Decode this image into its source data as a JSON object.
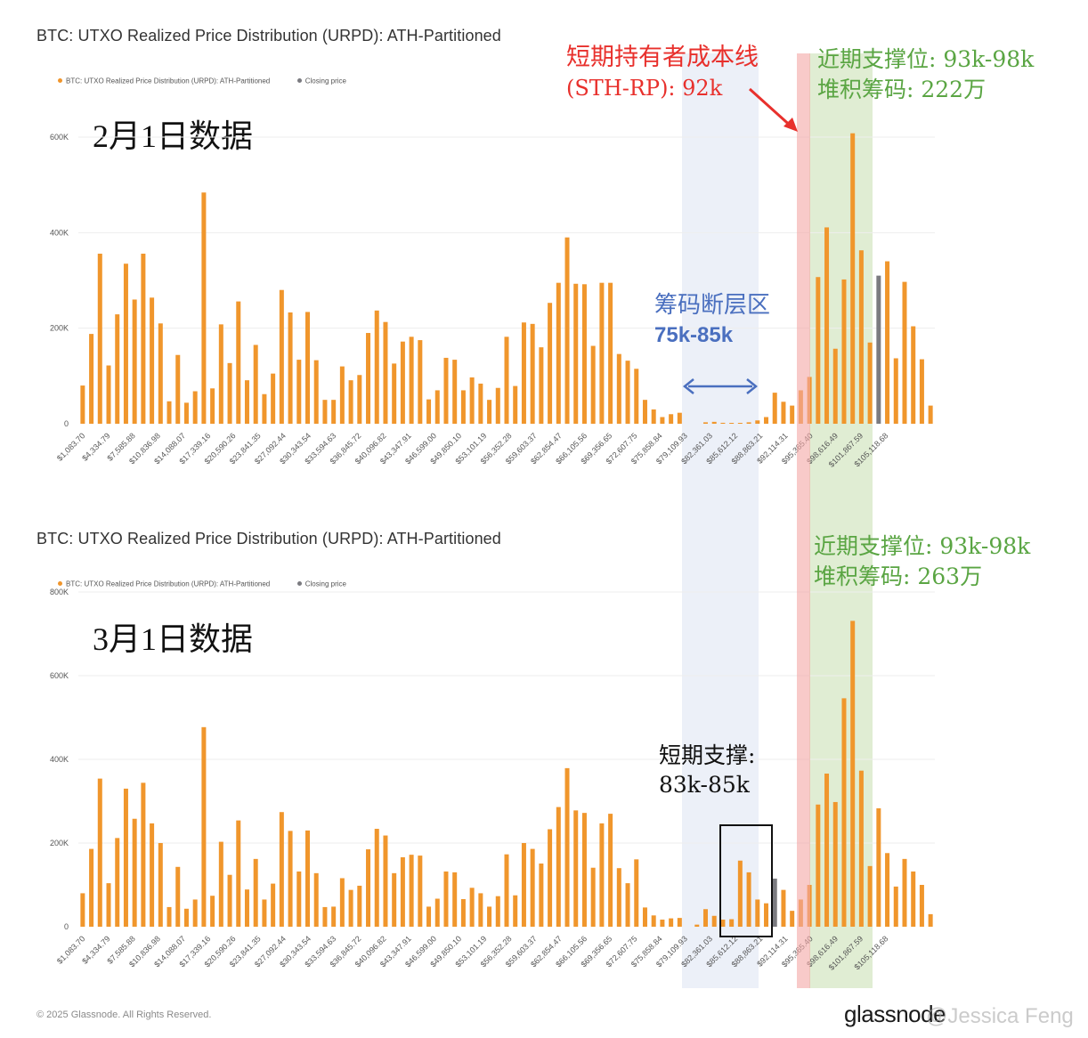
{
  "watermark": "@Jessica Feng",
  "footer": {
    "copyright": "© 2025 Glassnode. All Rights Reserved.",
    "brand": "glassnode"
  },
  "colors": {
    "bar": "#f0962c",
    "closing": "#7b7b80",
    "grid": "#eeeeee",
    "gap_band": "#e5ebf6",
    "sth_band": "#f4a7a5",
    "support_band": "#cfe4bb",
    "red_text": "#e8302c",
    "blue_text": "#4a6fbf",
    "green_text": "#5aa543",
    "box_border": "#111111"
  },
  "annotations": {
    "sth_line1": "短期持有者成本线",
    "sth_line2": "(STH-RP): 92k",
    "gap_line1": "筹码断层区",
    "gap_line2": "75k-85k",
    "support1_line1": "近期支撑位: 93k-98k",
    "support1_line2": "堆积筹码: 222万",
    "support2_line1": "近期支撑位: 93k-98k",
    "support2_line2": "堆积筹码: 263万",
    "short_line1": "短期支撑:",
    "short_line2": "83k-85k"
  },
  "chart_data": [
    {
      "type": "bar",
      "title": "BTC: UTXO Realized Price Distribution (URPD): ATH-Partitioned",
      "date_label": "2月1日数据",
      "legend": [
        "BTC: UTXO Realized Price Distribution (URPD): ATH-Partitioned",
        "Closing price"
      ],
      "ylim": [
        0,
        600000
      ],
      "yticks": [
        "0",
        "200K",
        "400K",
        "600K"
      ],
      "xtick_labels": [
        "$1,083.70",
        "$4,334.79",
        "$7,585.88",
        "$10,836.98",
        "$14,088.07",
        "$17,339.16",
        "$20,590.26",
        "$23,841.35",
        "$27,092.44",
        "$30,343.54",
        "$33,594.63",
        "$36,845.72",
        "$40,096.82",
        "$43,347.91",
        "$46,599.00",
        "$49,850.10",
        "$53,101.19",
        "$56,352.28",
        "$59,603.37",
        "$62,854.47",
        "$66,105.56",
        "$69,356.65",
        "$72,607.75",
        "$75,858.84",
        "$79,109.93",
        "$82,361.03",
        "$85,612.12",
        "$88,863.21",
        "$92,114.31",
        "$95,365.40",
        "$98,616.49",
        "$101,867.59",
        "$105,118.68"
      ],
      "values": [
        80000,
        188000,
        356000,
        122000,
        229000,
        335000,
        260000,
        356000,
        264000,
        210000,
        47000,
        144000,
        44000,
        68000,
        484000,
        74000,
        208000,
        127000,
        256000,
        91000,
        165000,
        62000,
        105000,
        280000,
        233000,
        134000,
        234000,
        133000,
        50000,
        50000,
        120000,
        91000,
        102000,
        190000,
        237000,
        213000,
        126000,
        172000,
        182000,
        175000,
        51000,
        70000,
        138000,
        134000,
        70000,
        97000,
        84000,
        50000,
        75000,
        182000,
        79000,
        212000,
        209000,
        160000,
        253000,
        295000,
        390000,
        293000,
        292000,
        163000,
        295000,
        295000,
        146000,
        132000,
        115000,
        50000,
        30000,
        14000,
        20000,
        23000,
        0,
        0,
        3000,
        4000,
        2000,
        1000,
        1000,
        3000,
        7000,
        14000,
        65000,
        46000,
        38000,
        70000,
        98000,
        307000,
        411000,
        157000,
        302000,
        608000,
        363000,
        170000,
        310000,
        340000,
        137000,
        297000,
        204000,
        135000,
        38000
      ],
      "closing_index": 92
    },
    {
      "type": "bar",
      "title": "BTC: UTXO Realized Price Distribution (URPD): ATH-Partitioned",
      "date_label": "3月1日数据",
      "legend": [
        "BTC: UTXO Realized Price Distribution (URPD): ATH-Partitioned",
        "Closing price"
      ],
      "ylim": [
        0,
        800000
      ],
      "yticks": [
        "0",
        "200K",
        "400K",
        "600K",
        "800K"
      ],
      "xtick_labels": [
        "$1,083.70",
        "$4,334.79",
        "$7,585.88",
        "$10,836.98",
        "$14,088.07",
        "$17,339.16",
        "$20,590.26",
        "$23,841.35",
        "$27,092.44",
        "$30,343.54",
        "$33,594.63",
        "$36,845.72",
        "$40,096.82",
        "$43,347.91",
        "$46,599.00",
        "$49,850.10",
        "$53,101.19",
        "$56,352.28",
        "$59,603.37",
        "$62,854.47",
        "$66,105.56",
        "$69,356.65",
        "$72,607.75",
        "$75,858.84",
        "$79,109.93",
        "$82,361.03",
        "$85,612.12",
        "$88,863.21",
        "$92,114.31",
        "$95,365.40",
        "$98,616.49",
        "$101,867.59",
        "$105,118.68"
      ],
      "values": [
        80000,
        186000,
        354000,
        104000,
        212000,
        330000,
        258000,
        344000,
        247000,
        200000,
        47000,
        143000,
        43000,
        65000,
        477000,
        74000,
        203000,
        124000,
        254000,
        89000,
        162000,
        65000,
        103000,
        274000,
        229000,
        132000,
        230000,
        128000,
        47000,
        48000,
        116000,
        88000,
        98000,
        185000,
        234000,
        218000,
        128000,
        166000,
        172000,
        170000,
        48000,
        67000,
        132000,
        130000,
        66000,
        93000,
        80000,
        48000,
        73000,
        173000,
        75000,
        200000,
        186000,
        151000,
        233000,
        286000,
        379000,
        278000,
        272000,
        141000,
        247000,
        270000,
        140000,
        104000,
        161000,
        46000,
        27000,
        17000,
        20000,
        21000,
        0,
        5000,
        42000,
        26000,
        17000,
        18000,
        158000,
        130000,
        65000,
        56000,
        115000,
        88000,
        38000,
        65000,
        100000,
        292000,
        366000,
        298000,
        546000,
        731000,
        373000,
        145000,
        283000,
        176000,
        96000,
        162000,
        132000,
        100000,
        30000
      ],
      "closing_index": 80
    }
  ]
}
